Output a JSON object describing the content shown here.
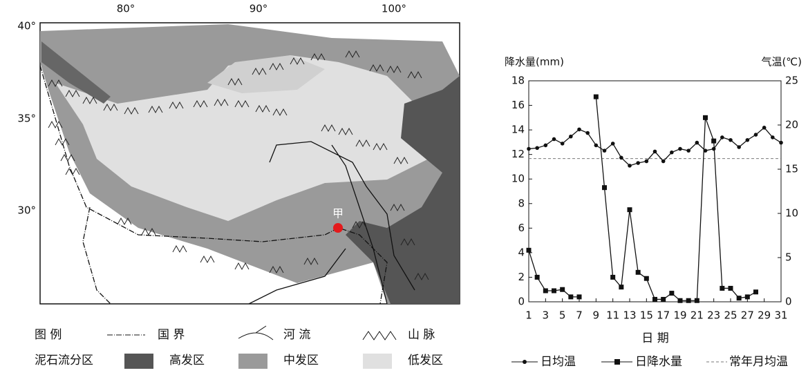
{
  "map": {
    "lon_labels": [
      "80°",
      "90°",
      "100°"
    ],
    "lat_labels": [
      "40°",
      "35°",
      "30°"
    ],
    "marker_label": "甲",
    "legend": {
      "title": "图 例",
      "border": "国 界",
      "river": "河 流",
      "mountain": "山 脉",
      "zone_title": "泥石流分区",
      "high": "高发区",
      "medium": "中发区",
      "low": "低发区"
    }
  },
  "chart_data": {
    "type": "line",
    "x_label": "日 期",
    "y_label": "降水量(mm)",
    "y2_label": "气温(℃)",
    "x": [
      1,
      2,
      3,
      4,
      5,
      6,
      7,
      8,
      9,
      10,
      11,
      12,
      13,
      14,
      15,
      16,
      17,
      18,
      19,
      20,
      21,
      22,
      23,
      24,
      25,
      26,
      27,
      28,
      29,
      30,
      31
    ],
    "xlim": [
      1,
      31
    ],
    "xticks": [
      1,
      3,
      5,
      7,
      9,
      11,
      13,
      15,
      17,
      19,
      21,
      23,
      25,
      27,
      29,
      31
    ],
    "ylim": [
      0,
      18
    ],
    "yticks": [
      0,
      2,
      4,
      6,
      8,
      10,
      12,
      14,
      16,
      18
    ],
    "y2lim": [
      0,
      25
    ],
    "y2ticks": [
      0,
      5,
      10,
      15,
      20,
      25
    ],
    "series": [
      {
        "name": "日均温",
        "color": "#111111",
        "marker": "circle",
        "axis": "y2",
        "values": [
          17.3,
          17.4,
          17.7,
          18.4,
          17.9,
          18.7,
          19.5,
          19.1,
          17.7,
          17.1,
          17.9,
          16.3,
          15.4,
          15.7,
          15.9,
          17.0,
          15.9,
          16.9,
          17.3,
          17.1,
          18.0,
          17.1,
          17.3,
          18.6,
          18.3,
          17.5,
          18.3,
          18.9,
          19.7,
          18.6,
          18.0
        ]
      },
      {
        "name": "日降水量",
        "color": "#111111",
        "marker": "square",
        "values": [
          4.2,
          2.0,
          0.9,
          0.9,
          1.0,
          0.4,
          0.4,
          null,
          16.7,
          9.3,
          2.0,
          1.2,
          7.5,
          2.4,
          1.9,
          0.2,
          0.2,
          0.7,
          0.1,
          0.1,
          0.1,
          15.0,
          13.1,
          1.1,
          1.1,
          0.3,
          0.4,
          0.8,
          null,
          null,
          null
        ]
      }
    ],
    "reference_line": {
      "name": "常年月均温",
      "value": 16.2,
      "axis": "y2",
      "color": "#777777"
    }
  }
}
